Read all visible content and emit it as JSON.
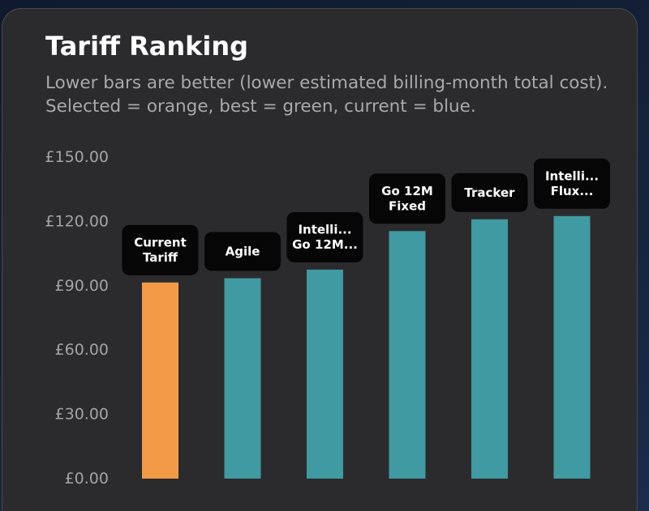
{
  "card": {
    "title": "Tariff Ranking",
    "subtitle": "Lower bars are better (lower estimated billing-month total cost). Selected = orange, best = green, current = blue."
  },
  "colors": {
    "selected": "#f29a48",
    "other": "#3f9aa1",
    "label_bg": "#060607"
  },
  "chart_data": {
    "type": "bar",
    "title": "Tariff Ranking",
    "categories": [
      "Current Tariff",
      "Agile",
      "Intelli... Go 12M...",
      "Go 12M Fixed",
      "Tracker",
      "Intelli... Flux..."
    ],
    "category_label_lines": [
      [
        "Current",
        "Tariff"
      ],
      [
        "Agile"
      ],
      [
        "Intelli...",
        "Go 12M..."
      ],
      [
        "Go 12M",
        "Fixed"
      ],
      [
        "Tracker"
      ],
      [
        "Intelli...",
        "Flux..."
      ]
    ],
    "values": [
      91.5,
      93.5,
      97.5,
      115.5,
      121.0,
      122.5
    ],
    "highlight": [
      "selected",
      "other",
      "other",
      "other",
      "other",
      "other"
    ],
    "yticks": [
      "£0.00",
      "£30.00",
      "£60.00",
      "£90.00",
      "£120.00",
      "£150.00"
    ],
    "ytick_values": [
      0,
      30,
      60,
      90,
      120,
      150
    ],
    "ylim": [
      0,
      150
    ],
    "xlabel": "",
    "ylabel": "",
    "grid": false,
    "legend": "none"
  }
}
